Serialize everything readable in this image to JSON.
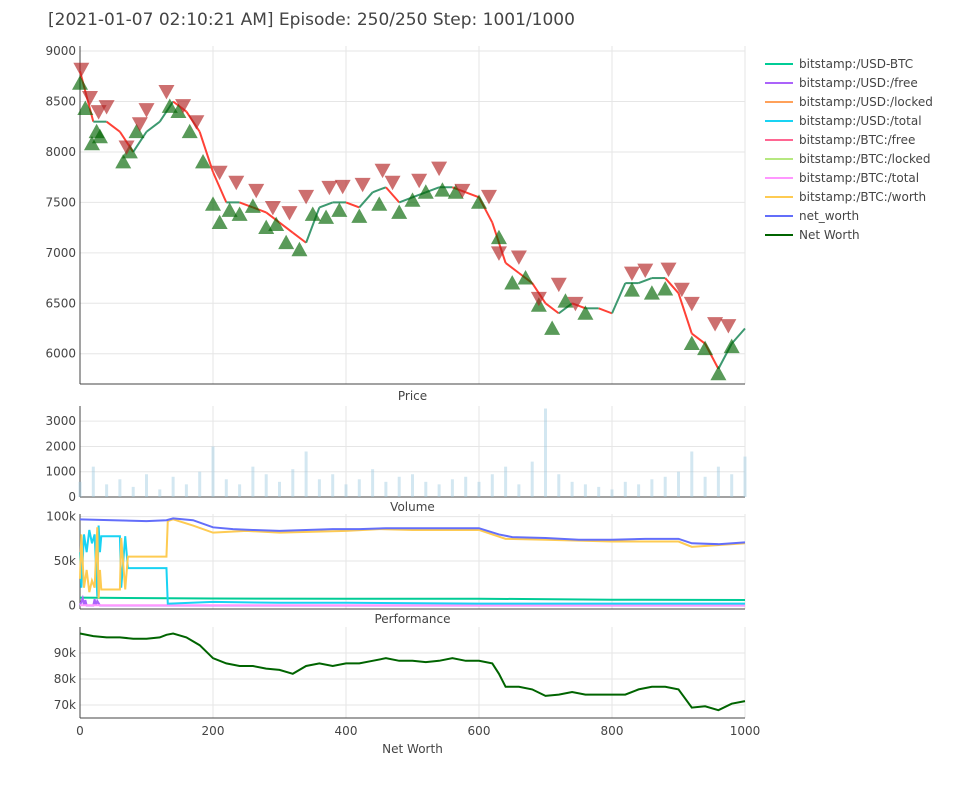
{
  "chart_data": {
    "title": "[2021-01-07 02:10:21 AM] Episode: 250/250 Step: 1001/1000",
    "type": "line",
    "x_axis": {
      "range": [
        0,
        1000
      ],
      "ticks": [
        0,
        200,
        400,
        600,
        800,
        1000
      ],
      "tick_labels": [
        "0",
        "200",
        "400",
        "600",
        "800",
        "1000"
      ]
    },
    "legend": {
      "placement": "right",
      "entries": [
        {
          "name": "bitstamp:/USD-BTC",
          "color": "#00cc96"
        },
        {
          "name": "bitstamp:/USD:/free",
          "color": "#ab63fa"
        },
        {
          "name": "bitstamp:/USD:/locked",
          "color": "#ffa15a"
        },
        {
          "name": "bitstamp:/USD:/total",
          "color": "#19d3f3"
        },
        {
          "name": "bitstamp:/BTC:/free",
          "color": "#ff6692"
        },
        {
          "name": "bitstamp:/BTC:/locked",
          "color": "#b6e880"
        },
        {
          "name": "bitstamp:/BTC:/total",
          "color": "#ff97ff"
        },
        {
          "name": "bitstamp:/BTC:/worth",
          "color": "#fecb52"
        },
        {
          "name": "net_worth",
          "color": "#636efa"
        },
        {
          "name": "Net Worth",
          "color": "#006400"
        }
      ]
    },
    "panels": [
      {
        "name": "price",
        "subtitle": "Price",
        "type": "candlestick",
        "ylim": [
          5700,
          9050
        ],
        "y_ticks": [
          6000,
          6500,
          7000,
          7500,
          8000,
          8500,
          9000
        ],
        "y_tick_labels": [
          "6000",
          "6500",
          "7000",
          "7500",
          "8000",
          "8500",
          "9000"
        ],
        "x": [
          0,
          20,
          40,
          60,
          80,
          100,
          120,
          140,
          160,
          180,
          200,
          220,
          240,
          260,
          280,
          300,
          320,
          340,
          360,
          380,
          400,
          420,
          440,
          460,
          480,
          500,
          520,
          540,
          560,
          580,
          600,
          620,
          640,
          660,
          680,
          700,
          720,
          740,
          760,
          780,
          800,
          820,
          840,
          860,
          880,
          900,
          920,
          940,
          960,
          980,
          1000
        ],
        "close": [
          8800,
          8300,
          8300,
          8200,
          8000,
          8200,
          8300,
          8500,
          8400,
          8200,
          7800,
          7500,
          7500,
          7450,
          7400,
          7300,
          7200,
          7100,
          7450,
          7500,
          7500,
          7450,
          7600,
          7650,
          7500,
          7550,
          7600,
          7650,
          7650,
          7600,
          7550,
          7300,
          6900,
          6800,
          6700,
          6500,
          6400,
          6500,
          6450,
          6450,
          6400,
          6700,
          6700,
          6750,
          6750,
          6600,
          6200,
          6100,
          5850,
          6100,
          6250
        ],
        "buy_markers": {
          "x": [
            0,
            8,
            18,
            25,
            30,
            65,
            75,
            85,
            135,
            148,
            165,
            185,
            200,
            210,
            225,
            240,
            260,
            280,
            295,
            310,
            330,
            350,
            370,
            390,
            420,
            450,
            480,
            500,
            520,
            545,
            565,
            600,
            630,
            650,
            670,
            690,
            710,
            730,
            760,
            830,
            860,
            880,
            920,
            940,
            960,
            980
          ],
          "y": [
            8680,
            8430,
            8080,
            8200,
            8150,
            7900,
            8000,
            8200,
            8450,
            8400,
            8200,
            7900,
            7480,
            7300,
            7420,
            7380,
            7460,
            7250,
            7280,
            7100,
            7030,
            7380,
            7350,
            7420,
            7360,
            7480,
            7400,
            7520,
            7600,
            7620,
            7600,
            7500,
            7150,
            6700,
            6750,
            6480,
            6250,
            6520,
            6400,
            6630,
            6600,
            6640,
            6100,
            6050,
            5800,
            6070
          ]
        },
        "sell_markers": {
          "x": [
            2,
            15,
            28,
            40,
            70,
            90,
            100,
            130,
            155,
            175,
            210,
            235,
            265,
            290,
            315,
            340,
            375,
            395,
            425,
            455,
            470,
            510,
            540,
            575,
            615,
            630,
            660,
            690,
            720,
            745,
            830,
            850,
            885,
            905,
            920,
            955,
            975
          ],
          "y": [
            8820,
            8540,
            8400,
            8450,
            8050,
            8280,
            8420,
            8600,
            8460,
            8300,
            7800,
            7700,
            7620,
            7450,
            7400,
            7560,
            7650,
            7660,
            7680,
            7820,
            7700,
            7720,
            7840,
            7620,
            7560,
            7000,
            6960,
            6550,
            6690,
            6500,
            6800,
            6830,
            6840,
            6640,
            6500,
            6300,
            6280
          ]
        }
      },
      {
        "name": "volume",
        "subtitle": "Volume",
        "type": "bar",
        "ylim": [
          0,
          3600
        ],
        "y_ticks": [
          0,
          1000,
          2000,
          3000
        ],
        "y_tick_labels": [
          "0",
          "1000",
          "2000",
          "3000"
        ],
        "x": [
          0,
          20,
          40,
          60,
          80,
          100,
          120,
          140,
          160,
          180,
          200,
          220,
          240,
          260,
          280,
          300,
          320,
          340,
          360,
          380,
          400,
          420,
          440,
          460,
          480,
          500,
          520,
          540,
          560,
          580,
          600,
          620,
          640,
          660,
          680,
          700,
          720,
          740,
          760,
          780,
          800,
          820,
          840,
          860,
          880,
          900,
          920,
          940,
          960,
          980,
          1000
        ],
        "values": [
          600,
          1200,
          500,
          700,
          400,
          900,
          300,
          800,
          500,
          1000,
          2000,
          700,
          500,
          1200,
          900,
          600,
          1100,
          1800,
          700,
          900,
          500,
          700,
          1100,
          600,
          800,
          900,
          600,
          500,
          700,
          800,
          600,
          900,
          1200,
          500,
          1400,
          3500,
          900,
          600,
          500,
          400,
          300,
          600,
          500,
          700,
          800,
          1000,
          1800,
          800,
          1200,
          900,
          1600
        ]
      },
      {
        "name": "performance",
        "subtitle": "Performance",
        "type": "line",
        "ylim": [
          -4000,
          103000
        ],
        "y_ticks": [
          0,
          50000,
          100000
        ],
        "y_tick_labels": [
          "0",
          "50k",
          "100k"
        ],
        "series": [
          {
            "name": "bitstamp:/USD-BTC",
            "color": "#00cc96",
            "x": [
              0,
              100,
              200,
              400,
              600,
              800,
              1000
            ],
            "y": [
              8800,
              8200,
              7800,
              7500,
              7600,
              6400,
              6200
            ]
          },
          {
            "name": "bitstamp:/USD:/free",
            "color": "#ab63fa",
            "x": [
              0,
              4,
              6,
              8,
              10,
              12,
              20,
              22,
              24,
              26,
              30,
              1000
            ],
            "y": [
              0,
              8000,
              0,
              6000,
              0,
              0,
              0,
              7000,
              0,
              5000,
              0,
              0
            ]
          },
          {
            "name": "bitstamp:/BTC:/total",
            "color": "#ff97ff",
            "x": [
              0,
              1000
            ],
            "y": [
              200,
              200
            ]
          },
          {
            "name": "bitstamp:/USD:/total",
            "color": "#19d3f3",
            "x": [
              0,
              2,
              6,
              10,
              14,
              18,
              22,
              26,
              28,
              30,
              32,
              40,
              60,
              62,
              68,
              72,
              76,
              130,
              132,
              135,
              200,
              300,
              400,
              600,
              800,
              1000
            ],
            "y": [
              60000,
              20000,
              80000,
              60000,
              85000,
              70000,
              80000,
              10000,
              90000,
              60000,
              78000,
              78000,
              78000,
              20000,
              78000,
              42000,
              42000,
              42000,
              2000,
              2000,
              4000,
              3000,
              3000,
              2000,
              2000,
              2000
            ]
          },
          {
            "name": "bitstamp:/BTC:/worth",
            "color": "#fecb52",
            "x": [
              0,
              2,
              6,
              10,
              14,
              18,
              22,
              26,
              28,
              30,
              32,
              40,
              60,
              62,
              68,
              72,
              76,
              130,
              132,
              140,
              170,
              200,
              250,
              300,
              400,
              450,
              500,
              600,
              640,
              700,
              800,
              900,
              920,
              1000
            ],
            "y": [
              30000,
              80000,
              20000,
              40000,
              15000,
              28000,
              20000,
              88000,
              8000,
              40000,
              18000,
              18000,
              18000,
              76000,
              18000,
              55000,
              55000,
              55000,
              95000,
              97000,
              90000,
              82000,
              84000,
              82000,
              84000,
              86000,
              85000,
              85000,
              75000,
              74000,
              72000,
              72000,
              66000,
              70000
            ]
          },
          {
            "name": "net_worth",
            "color": "#636efa",
            "x": [
              0,
              50,
              100,
              130,
              140,
              170,
              200,
              230,
              260,
              300,
              340,
              380,
              420,
              460,
              500,
              540,
              600,
              630,
              650,
              700,
              750,
              800,
              850,
              900,
              920,
              960,
              1000
            ],
            "y": [
              97000,
              96000,
              95000,
              96000,
              98000,
              96000,
              88000,
              86000,
              85000,
              84000,
              85000,
              86000,
              86000,
              87000,
              87000,
              87000,
              87000,
              80000,
              77000,
              76000,
              74000,
              74000,
              75000,
              75000,
              70000,
              69000,
              71000
            ]
          }
        ]
      },
      {
        "name": "net_worth",
        "subtitle": "Net Worth",
        "type": "line",
        "ylim": [
          65000,
          100000
        ],
        "y_ticks": [
          70000,
          80000,
          90000
        ],
        "y_tick_labels": [
          "70k",
          "80k",
          "90k"
        ],
        "series": [
          {
            "name": "Net Worth",
            "color": "#006400",
            "x": [
              0,
              20,
              40,
              60,
              80,
              100,
              120,
              130,
              140,
              160,
              180,
              200,
              220,
              240,
              260,
              280,
              300,
              320,
              340,
              360,
              380,
              400,
              420,
              440,
              460,
              480,
              500,
              520,
              540,
              560,
              580,
              600,
              620,
              630,
              640,
              660,
              680,
              700,
              720,
              740,
              760,
              780,
              800,
              820,
              840,
              860,
              880,
              900,
              920,
              940,
              960,
              980,
              1000
            ],
            "y": [
              97500,
              96500,
              96000,
              96000,
              95500,
              95500,
              96000,
              97000,
              97500,
              96000,
              93000,
              88000,
              86000,
              85000,
              85000,
              84000,
              83500,
              82000,
              85000,
              86000,
              85000,
              86000,
              86000,
              87000,
              88000,
              87000,
              87000,
              86500,
              87000,
              88000,
              87000,
              87000,
              86000,
              82000,
              77000,
              77000,
              76000,
              73500,
              74000,
              75000,
              74000,
              74000,
              74000,
              74000,
              76000,
              77000,
              77000,
              76000,
              69000,
              69500,
              68000,
              70500,
              71500
            ]
          }
        ]
      }
    ]
  }
}
